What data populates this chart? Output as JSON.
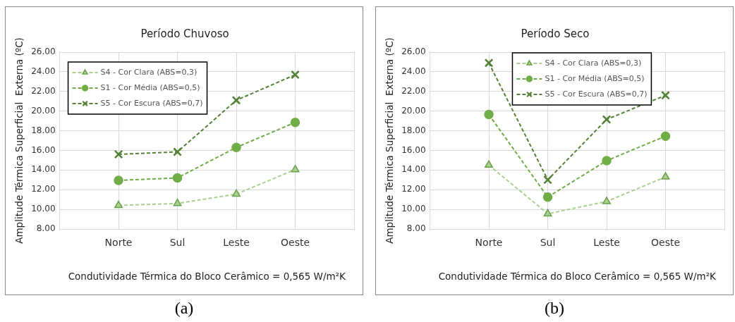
{
  "chart_data": [
    {
      "type": "line",
      "title": "Período Chuvoso",
      "xlabel": "Condutividade Térmica do Bloco Cerâmico = 0,565 W/m²K",
      "ylabel": "Amplitude Térmica Superficial  Externa (ºC)",
      "categories": [
        null,
        "Norte",
        "Sul",
        "Leste",
        "Oeste",
        null
      ],
      "series": [
        {
          "name": "S4 - Cor Clara (ABS=0,3)",
          "color": "#a9d18e",
          "marker": "triangle",
          "values": [
            null,
            10.4,
            10.6,
            11.55,
            14.05,
            null
          ]
        },
        {
          "name": "S1 - Cor Média (ABS=0,5)",
          "color": "#70ad47",
          "marker": "circle",
          "values": [
            null,
            12.95,
            13.2,
            16.3,
            18.85,
            null
          ]
        },
        {
          "name": "S5 - Cor Escura (ABS=0,7)",
          "color": "#548235",
          "marker": "cross",
          "values": [
            null,
            15.6,
            15.85,
            21.1,
            23.7,
            null
          ]
        }
      ],
      "ylim": [
        8,
        26
      ],
      "yticks": [
        {
          "value": 8,
          "label": "8.00"
        },
        {
          "value": 10,
          "label": "10.00"
        },
        {
          "value": 12,
          "label": "12.00"
        },
        {
          "value": 14,
          "label": "14.00"
        },
        {
          "value": 16,
          "label": "16.00"
        },
        {
          "value": 18,
          "label": "18.00"
        },
        {
          "value": 20,
          "label": "20.00"
        },
        {
          "value": 22,
          "label": "22.00"
        },
        {
          "value": 24,
          "label": "24.00"
        },
        {
          "value": 26,
          "label": "26.00"
        }
      ],
      "grid": true,
      "legend": "top left",
      "line_style": "dashed",
      "annotations": [
        "(a)"
      ]
    },
    {
      "type": "line",
      "title": "Período Seco",
      "xlabel": "Condutividade Térmica do Bloco Cerâmico = 0,565 W/m²K",
      "ylabel": "Amplitude Térmica Superficial  Externa (ºC)",
      "categories": [
        null,
        "Norte",
        "Sul",
        "Leste",
        "Oeste",
        null
      ],
      "series": [
        {
          "name": "S4 - Cor Clara (ABS=0,3)",
          "color": "#a9d18e",
          "marker": "triangle",
          "values": [
            null,
            14.5,
            9.55,
            10.8,
            13.3,
            null
          ]
        },
        {
          "name": "S1 - Cor Média (ABS=0,5)",
          "color": "#70ad47",
          "marker": "circle",
          "values": [
            null,
            19.65,
            11.25,
            14.95,
            17.45,
            null
          ]
        },
        {
          "name": "S5 - Cor Escura (ABS=0,7)",
          "color": "#548235",
          "marker": "cross",
          "values": [
            null,
            24.9,
            13.0,
            19.15,
            21.6,
            null
          ]
        }
      ],
      "ylim": [
        8,
        26
      ],
      "yticks": [
        {
          "value": 8,
          "label": "8.00"
        },
        {
          "value": 10,
          "label": "10.00"
        },
        {
          "value": 12,
          "label": "12.00"
        },
        {
          "value": 14,
          "label": "14.00"
        },
        {
          "value": 16,
          "label": "16.00"
        },
        {
          "value": 18,
          "label": "18.00"
        },
        {
          "value": 20,
          "label": "20.00"
        },
        {
          "value": 22,
          "label": "22.00"
        },
        {
          "value": 24,
          "label": "24.00"
        },
        {
          "value": 26,
          "label": "26.00"
        }
      ],
      "grid": true,
      "legend": "top",
      "line_style": "dashed",
      "annotations": [
        "(b)"
      ]
    }
  ]
}
